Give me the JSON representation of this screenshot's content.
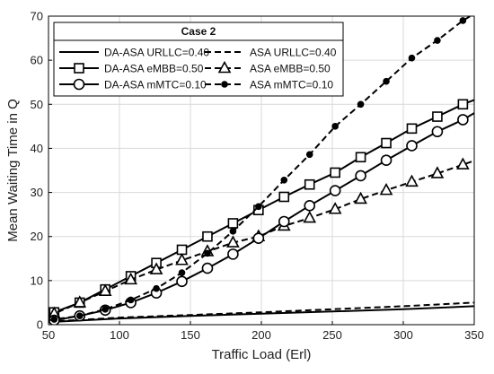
{
  "chart_data": {
    "type": "line",
    "title": "",
    "xlabel": "Traffic Load (Erl)",
    "ylabel": "Mean Waiting Time in Q",
    "xlim": [
      50,
      350
    ],
    "ylim": [
      0,
      70
    ],
    "x_ticks": [
      50,
      100,
      150,
      200,
      250,
      300,
      350
    ],
    "y_ticks": [
      0,
      10,
      20,
      30,
      40,
      50,
      60,
      70
    ],
    "x_tick_labels": [
      "50",
      "100",
      "150",
      "200",
      "250",
      "300",
      "350"
    ],
    "y_tick_labels": [
      "0",
      "10",
      "20",
      "30",
      "40",
      "50",
      "60",
      "70"
    ],
    "grid": true,
    "legend": {
      "title": "Case 2",
      "placement": "top-left"
    },
    "series": [
      {
        "name": "DA-ASA URLLC=0.40",
        "style": "solid",
        "marker": "none",
        "color": "#000000",
        "x": [
          50,
          100,
          150,
          200,
          250,
          300,
          350
        ],
        "y": [
          0.6,
          1.4,
          2.0,
          2.5,
          3.0,
          3.5,
          4.2
        ]
      },
      {
        "name": "ASA URLLC=0.40",
        "style": "dashed",
        "marker": "none",
        "color": "#000000",
        "x": [
          50,
          100,
          150,
          200,
          250,
          300,
          350
        ],
        "y": [
          0.7,
          1.6,
          2.2,
          2.8,
          3.5,
          4.2,
          5.0
        ]
      },
      {
        "name": "DA-ASA eMBB=0.50",
        "style": "solid",
        "marker": "square",
        "color": "#000000",
        "x": [
          50,
          54,
          72,
          90,
          108,
          126,
          144,
          162,
          180,
          198,
          216,
          234,
          252,
          270,
          288,
          306,
          324,
          342,
          350
        ],
        "y": [
          2.0,
          2.8,
          5.0,
          8.0,
          11.0,
          14.0,
          17.0,
          20.0,
          23.0,
          26.0,
          29.0,
          31.8,
          34.5,
          38.0,
          41.2,
          44.5,
          47.2,
          50.0,
          51.0
        ]
      },
      {
        "name": "ASA eMBB=0.50",
        "style": "dashed",
        "marker": "triangle",
        "color": "#000000",
        "x": [
          50,
          54,
          72,
          90,
          108,
          126,
          144,
          162,
          180,
          198,
          216,
          234,
          252,
          270,
          288,
          306,
          324,
          342,
          350
        ],
        "y": [
          2.0,
          2.5,
          5.0,
          7.6,
          10.2,
          12.5,
          14.6,
          16.6,
          18.6,
          20.0,
          22.4,
          24.2,
          26.2,
          28.5,
          30.5,
          32.4,
          34.3,
          36.3,
          37.2
        ]
      },
      {
        "name": "DA-ASA mMTC=0.10",
        "style": "solid",
        "marker": "circle",
        "color": "#000000",
        "x": [
          50,
          54,
          72,
          90,
          108,
          126,
          144,
          162,
          180,
          198,
          216,
          234,
          252,
          270,
          288,
          306,
          324,
          342,
          350
        ],
        "y": [
          0.8,
          1.0,
          2.0,
          3.3,
          5.0,
          7.2,
          9.8,
          12.8,
          16.0,
          19.6,
          23.4,
          27.0,
          30.4,
          33.8,
          37.3,
          40.6,
          43.8,
          46.5,
          48.0
        ]
      },
      {
        "name": "ASA mMTC=0.10",
        "style": "dashed",
        "marker": "dot",
        "color": "#000000",
        "x": [
          50,
          54,
          72,
          90,
          108,
          126,
          144,
          162,
          180,
          198,
          216,
          234,
          252,
          270,
          288,
          306,
          324,
          342,
          350
        ],
        "y": [
          1.0,
          1.2,
          2.0,
          3.5,
          5.6,
          8.2,
          11.8,
          16.2,
          21.2,
          26.8,
          32.8,
          38.6,
          45.0,
          50.0,
          55.2,
          60.5,
          64.5,
          69.0,
          70.5
        ]
      }
    ]
  }
}
